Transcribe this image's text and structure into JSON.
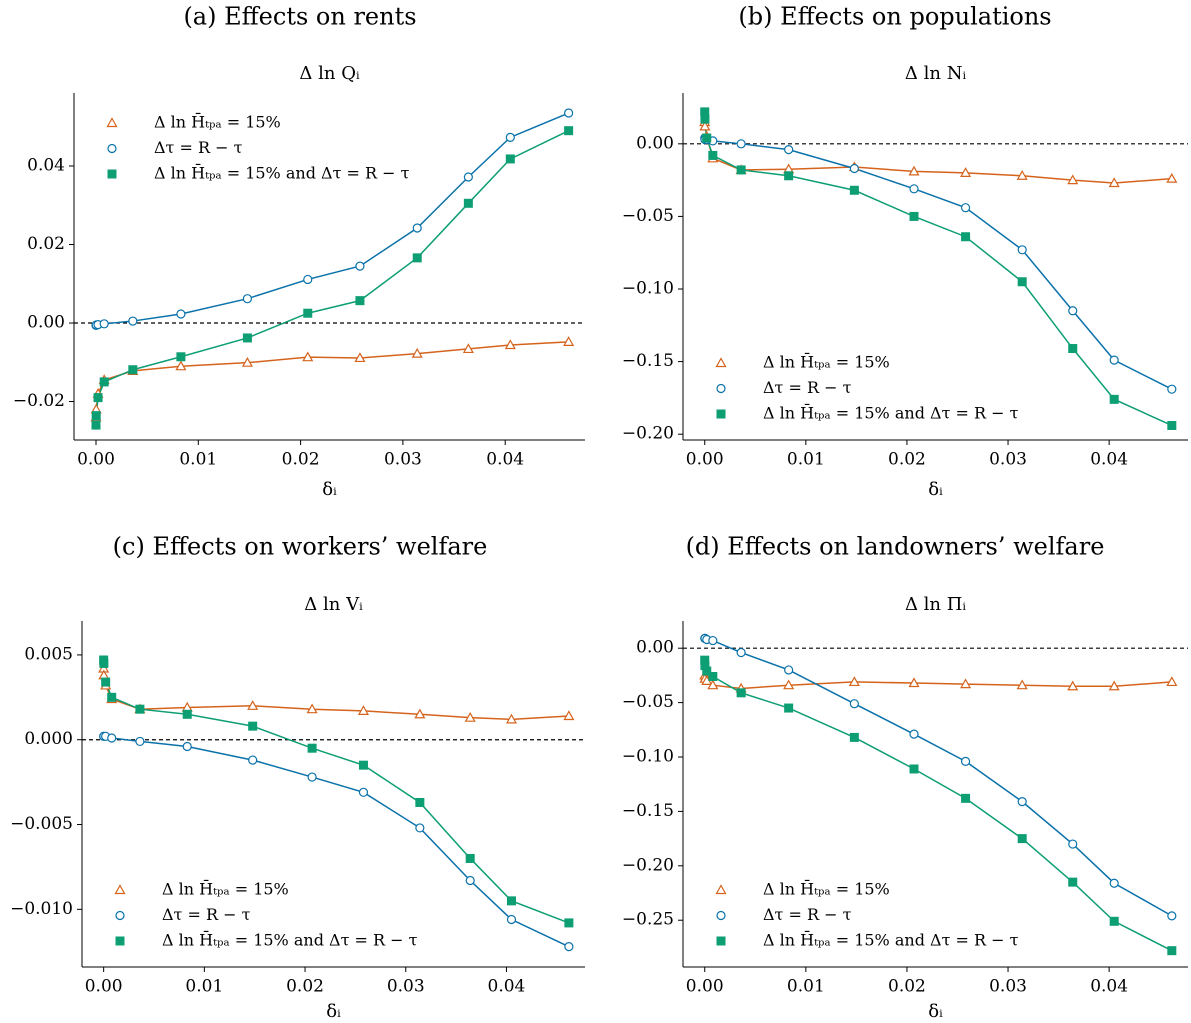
{
  "chart_data": [
    {
      "type": "line",
      "subtitle": "(a) Effects on rents",
      "title": "Δ ln Qᵢ",
      "x_label": "δᵢ",
      "legend": "upper left",
      "hline": 0,
      "x": [
        0.0,
        2e-05,
        0.0002,
        0.0008,
        0.0036,
        0.0083,
        0.0148,
        0.0207,
        0.0258,
        0.0314,
        0.0364,
        0.0405,
        0.0462
      ],
      "xlim": [
        -0.00215,
        0.0478
      ],
      "xticks": [
        {
          "value": 0,
          "label": "0.00"
        },
        0.01,
        0.02,
        0.03,
        0.04
      ],
      "ylim": [
        -0.0298,
        0.0586
      ],
      "yticks": [
        {
          "value": -0.02,
          "label": "−0.02"
        },
        {
          "value": 0,
          "label": "0.00"
        },
        0.02,
        0.04
      ],
      "series": [
        {
          "name": "Δ ln H̄ₜₚₐ = 15%",
          "color": "#d5631c",
          "marker": "triangle",
          "values": [
            -0.024,
            -0.022,
            -0.018,
            -0.0145,
            -0.0122,
            -0.011,
            -0.0101,
            -0.0087,
            -0.0089,
            -0.0078,
            -0.0066,
            -0.0056,
            -0.0048
          ]
        },
        {
          "name": "Δτ = R − τ",
          "color": "#0a72aa",
          "marker": "circle",
          "values": [
            -0.0006,
            -0.0005,
            -0.0004,
            -0.0002,
            0.0005,
            0.0023,
            0.0062,
            0.0111,
            0.0145,
            0.0242,
            0.0372,
            0.0473,
            0.0535
          ]
        },
        {
          "name": "Δ ln H̄ₜₚₐ = 15% and Δτ = R − τ",
          "color": "#0d9e74",
          "marker": "square",
          "values": [
            -0.026,
            -0.0236,
            -0.019,
            -0.015,
            -0.0119,
            -0.0086,
            -0.0038,
            0.0025,
            0.0057,
            0.0166,
            0.0305,
            0.0418,
            0.049
          ]
        }
      ]
    },
    {
      "type": "line",
      "subtitle": "(b) Effects on populations",
      "title": "Δ ln Nᵢ",
      "x_label": "δᵢ",
      "legend": "lower left",
      "hline": 0,
      "x": [
        0.0,
        2e-05,
        0.0002,
        0.0008,
        0.0036,
        0.0083,
        0.0148,
        0.0207,
        0.0258,
        0.0314,
        0.0364,
        0.0405,
        0.0462
      ],
      "xlim": [
        -0.00215,
        0.0478
      ],
      "xticks": [
        {
          "value": 0,
          "label": "0.00"
        },
        0.01,
        0.02,
        0.03,
        0.04
      ],
      "ylim": [
        -0.204,
        0.035
      ],
      "yticks": [
        {
          "value": -0.2,
          "label": "−0.20"
        },
        {
          "value": -0.15,
          "label": "−0.15"
        },
        {
          "value": -0.1,
          "label": "−0.10"
        },
        {
          "value": -0.05,
          "label": "−0.05"
        },
        {
          "value": 0,
          "label": "0.00"
        }
      ],
      "series": [
        {
          "name": "Δ ln H̄ₜₚₐ = 15%",
          "color": "#d5631c",
          "marker": "triangle",
          "values": [
            0.015,
            0.012,
            0.005,
            -0.01,
            -0.018,
            -0.0175,
            -0.016,
            -0.019,
            -0.02,
            -0.022,
            -0.025,
            -0.027,
            -0.024
          ]
        },
        {
          "name": "Δτ = R − τ",
          "color": "#0a72aa",
          "marker": "circle",
          "values": [
            0.004,
            0.003,
            0.003,
            0.002,
            0.0,
            -0.004,
            -0.017,
            -0.031,
            -0.044,
            -0.073,
            -0.115,
            -0.149,
            -0.169
          ]
        },
        {
          "name": "Δ ln H̄ₜₚₐ = 15% and Δτ = R − τ",
          "color": "#0d9e74",
          "marker": "square",
          "values": [
            0.022,
            0.017,
            0.004,
            -0.008,
            -0.018,
            -0.022,
            -0.032,
            -0.05,
            -0.064,
            -0.095,
            -0.141,
            -0.176,
            -0.194
          ]
        }
      ]
    },
    {
      "type": "line",
      "subtitle": "(c) Effects on workers’ welfare",
      "title": "Δ ln Vᵢ",
      "x_label": "δᵢ",
      "legend": "lower left",
      "hline": 0,
      "x": [
        0.0,
        2e-05,
        0.0002,
        0.0008,
        0.0036,
        0.0083,
        0.0148,
        0.0207,
        0.0258,
        0.0314,
        0.0364,
        0.0405,
        0.0462
      ],
      "xlim": [
        -0.00215,
        0.0478
      ],
      "xticks": [
        {
          "value": 0,
          "label": "0.00"
        },
        0.01,
        0.02,
        0.03,
        0.04
      ],
      "ylim": [
        -0.0134,
        0.007
      ],
      "yticks": [
        {
          "value": -0.01,
          "label": "−0.010"
        },
        {
          "value": -0.005,
          "label": "−0.005"
        },
        {
          "value": 0,
          "label": "0.000"
        },
        0.005
      ],
      "series": [
        {
          "name": "Δ ln H̄ₜₚₐ = 15%",
          "color": "#d5631c",
          "marker": "triangle",
          "values": [
            0.0042,
            0.0038,
            0.0032,
            0.0024,
            0.0018,
            0.0019,
            0.002,
            0.0018,
            0.0017,
            0.0015,
            0.0013,
            0.0012,
            0.0014
          ]
        },
        {
          "name": "Δτ = R − τ",
          "color": "#0a72aa",
          "marker": "circle",
          "values": [
            0.0002,
            0.0002,
            0.0002,
            0.0001,
            -0.0001,
            -0.0004,
            -0.0012,
            -0.0022,
            -0.0031,
            -0.0052,
            -0.0083,
            -0.0106,
            -0.0122
          ]
        },
        {
          "name": "Δ ln H̄ₜₚₐ = 15% and Δτ = R − τ",
          "color": "#0d9e74",
          "marker": "square",
          "values": [
            0.0047,
            0.0045,
            0.0034,
            0.0025,
            0.0018,
            0.0015,
            0.0008,
            -0.0005,
            -0.0015,
            -0.0037,
            -0.007,
            -0.0095,
            -0.0108
          ]
        }
      ]
    },
    {
      "type": "line",
      "subtitle": "(d) Effects on landowners’ welfare",
      "title": "Δ ln Πᵢ",
      "x_label": "δᵢ",
      "legend": "lower left",
      "hline": 0,
      "x": [
        0.0,
        2e-05,
        0.0002,
        0.0008,
        0.0036,
        0.0083,
        0.0148,
        0.0207,
        0.0258,
        0.0314,
        0.0364,
        0.0405,
        0.0462
      ],
      "xlim": [
        -0.00215,
        0.0478
      ],
      "xticks": [
        {
          "value": 0,
          "label": "0.00"
        },
        0.01,
        0.02,
        0.03,
        0.04
      ],
      "ylim": [
        -0.293,
        0.025
      ],
      "yticks": [
        {
          "value": -0.25,
          "label": "−0.25"
        },
        {
          "value": -0.2,
          "label": "−0.20"
        },
        {
          "value": -0.15,
          "label": "−0.15"
        },
        {
          "value": -0.1,
          "label": "−0.10"
        },
        {
          "value": -0.05,
          "label": "−0.05"
        },
        {
          "value": 0,
          "label": "0.00"
        }
      ],
      "series": [
        {
          "name": "Δ ln H̄ₜₚₐ = 15%",
          "color": "#d5631c",
          "marker": "triangle",
          "values": [
            -0.025,
            -0.028,
            -0.03,
            -0.034,
            -0.037,
            -0.034,
            -0.031,
            -0.032,
            -0.033,
            -0.034,
            -0.035,
            -0.035,
            -0.031
          ]
        },
        {
          "name": "Δτ = R − τ",
          "color": "#0a72aa",
          "marker": "circle",
          "values": [
            0.009,
            0.009,
            0.008,
            0.007,
            -0.004,
            -0.02,
            -0.051,
            -0.079,
            -0.104,
            -0.141,
            -0.18,
            -0.216,
            -0.246
          ]
        },
        {
          "name": "Δ ln H̄ₜₚₐ = 15% and Δτ = R − τ",
          "color": "#0d9e74",
          "marker": "square",
          "values": [
            -0.011,
            -0.016,
            -0.021,
            -0.026,
            -0.041,
            -0.055,
            -0.082,
            -0.111,
            -0.138,
            -0.175,
            -0.215,
            -0.251,
            -0.278
          ]
        }
      ]
    }
  ]
}
